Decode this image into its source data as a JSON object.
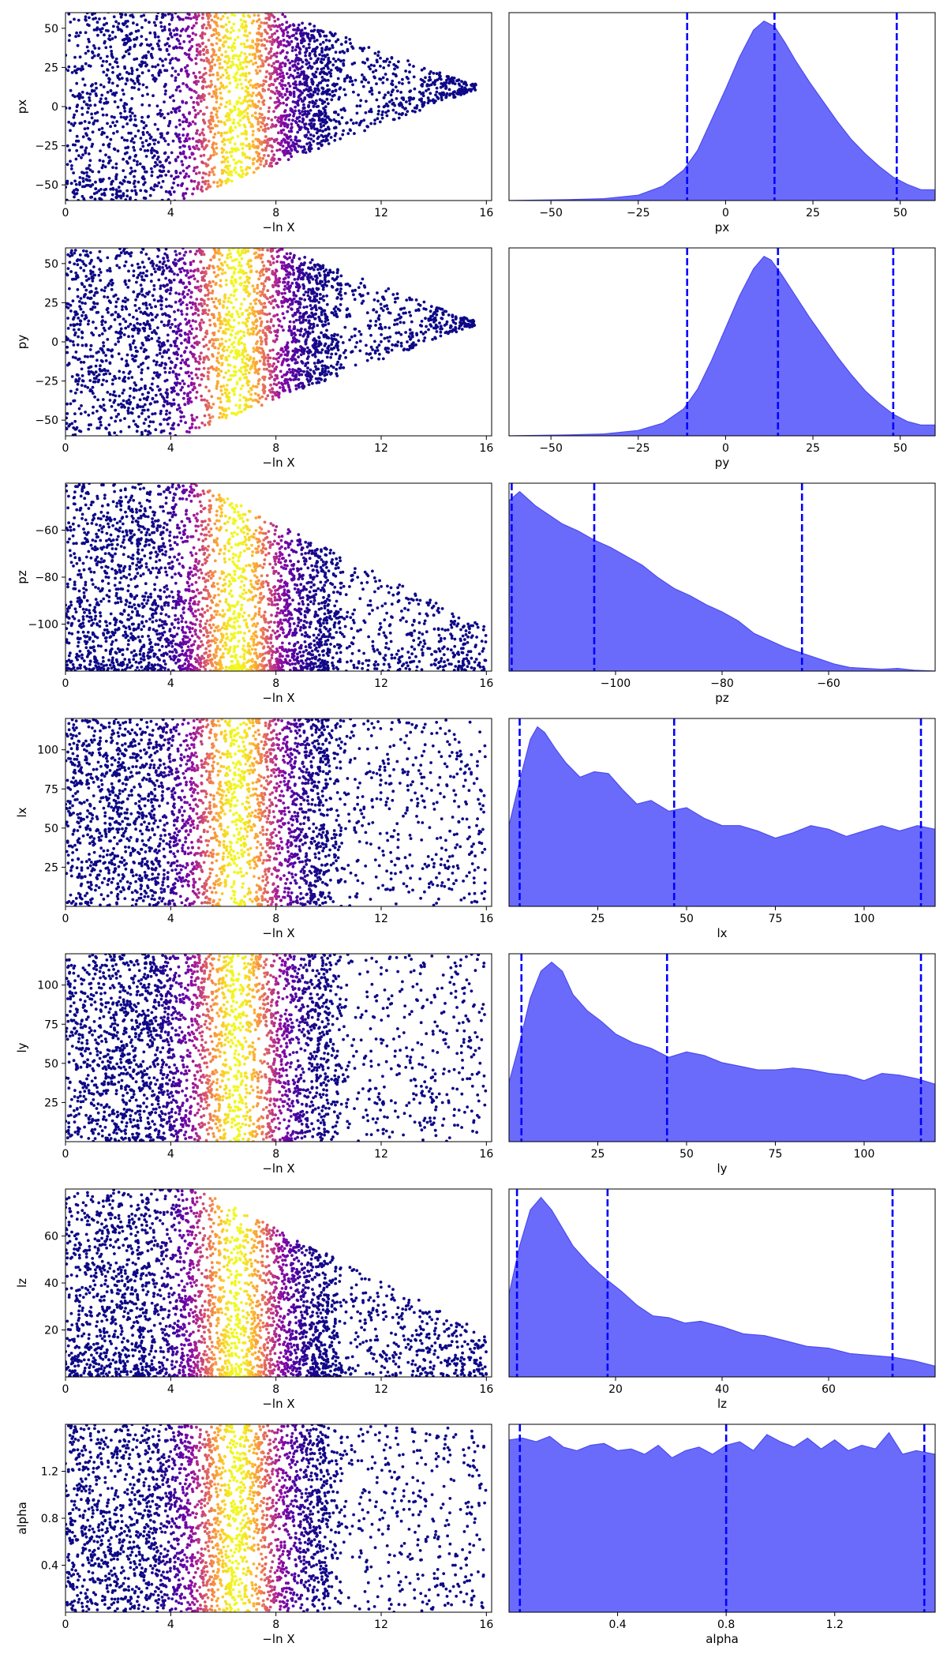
{
  "colors": {
    "kde_fill": "#6b6bfb",
    "kde_line": "#4b4bf0",
    "quantile_line": "#0000ff",
    "colormap": "plasma"
  },
  "chart_data": [
    {
      "type": "scatter",
      "param": "px",
      "xlabel": "−ln X",
      "ylabel": "px",
      "xlim": [
        0,
        16.2
      ],
      "ylim": [
        -60,
        60
      ],
      "xticks": [
        "0",
        "4",
        "8",
        "12",
        "16"
      ],
      "xtick_values": [
        0,
        4,
        8,
        12,
        16
      ],
      "yticks": [
        "−50",
        "−25",
        "0",
        "25",
        "50"
      ],
      "ytick_values": [
        -50,
        -25,
        0,
        25,
        50
      ],
      "color_peak_lnx": 6.5,
      "tail_lnx": 15.6,
      "envelope": "funnel",
      "center": 12
    },
    {
      "type": "area",
      "param": "px",
      "xlabel": "px",
      "xlim": [
        -62,
        60
      ],
      "xticks": [
        "−50",
        "−25",
        "0",
        "25",
        "50"
      ],
      "xtick_values": [
        -50,
        -25,
        0,
        25,
        50
      ],
      "quantiles": [
        -11,
        14,
        49
      ],
      "x": [
        -62,
        -45,
        -35,
        -25,
        -18,
        -12,
        -8,
        -4,
        0,
        4,
        8,
        11,
        14,
        17,
        20,
        24,
        28,
        32,
        36,
        40,
        44,
        48,
        52,
        56,
        60
      ],
      "density": [
        0.0,
        0.005,
        0.01,
        0.03,
        0.08,
        0.17,
        0.28,
        0.45,
        0.62,
        0.8,
        0.95,
        1.0,
        0.97,
        0.88,
        0.78,
        0.66,
        0.55,
        0.44,
        0.34,
        0.26,
        0.19,
        0.13,
        0.09,
        0.06,
        0.06
      ]
    },
    {
      "type": "scatter",
      "param": "py",
      "xlabel": "−ln X",
      "ylabel": "py",
      "xlim": [
        0,
        16.2
      ],
      "ylim": [
        -60,
        60
      ],
      "xticks": [
        "0",
        "4",
        "8",
        "12",
        "16"
      ],
      "xtick_values": [
        0,
        4,
        8,
        12,
        16
      ],
      "yticks": [
        "−50",
        "−25",
        "0",
        "25",
        "50"
      ],
      "ytick_values": [
        -50,
        -25,
        0,
        25,
        50
      ],
      "color_peak_lnx": 6.5,
      "tail_lnx": 15.6,
      "envelope": "funnel",
      "center": 12
    },
    {
      "type": "area",
      "param": "py",
      "xlabel": "py",
      "xlim": [
        -62,
        60
      ],
      "xticks": [
        "−50",
        "−25",
        "0",
        "25",
        "50"
      ],
      "xtick_values": [
        -50,
        -25,
        0,
        25,
        50
      ],
      "quantiles": [
        -11,
        15,
        48
      ],
      "x": [
        -62,
        -45,
        -35,
        -25,
        -18,
        -12,
        -8,
        -4,
        0,
        4,
        8,
        11,
        13,
        16,
        20,
        24,
        28,
        32,
        36,
        40,
        44,
        48,
        52,
        56,
        60
      ],
      "density": [
        0.0,
        0.005,
        0.01,
        0.03,
        0.07,
        0.15,
        0.26,
        0.42,
        0.6,
        0.78,
        0.93,
        1.0,
        0.98,
        0.9,
        0.78,
        0.66,
        0.55,
        0.44,
        0.34,
        0.25,
        0.18,
        0.12,
        0.08,
        0.06,
        0.06
      ]
    },
    {
      "type": "scatter",
      "param": "pz",
      "xlabel": "−ln X",
      "ylabel": "pz",
      "xlim": [
        0,
        16.2
      ],
      "ylim": [
        -120,
        -40
      ],
      "xticks": [
        "0",
        "4",
        "8",
        "12",
        "16"
      ],
      "xtick_values": [
        0,
        4,
        8,
        12,
        16
      ],
      "yticks": [
        "−100",
        "−80",
        "−60"
      ],
      "ytick_values": [
        -100,
        -80,
        -60
      ],
      "color_peak_lnx": 6.5,
      "tail_lnx": 16,
      "envelope": "low",
      "center": -100
    },
    {
      "type": "area",
      "param": "pz",
      "xlabel": "pz",
      "xlim": [
        -120,
        -40
      ],
      "xticks": [
        "−100",
        "−80",
        "−60"
      ],
      "xtick_values": [
        -100,
        -80,
        -60
      ],
      "quantiles": [
        -119.5,
        -104,
        -65
      ],
      "x": [
        -120,
        -118,
        -115,
        -112,
        -110,
        -107,
        -104,
        -101,
        -98,
        -95,
        -92,
        -89,
        -86,
        -83,
        -80,
        -77,
        -74,
        -71,
        -68,
        -65,
        -62,
        -59,
        -56,
        -53,
        -50,
        -47,
        -44,
        -40
      ],
      "density": [
        0.95,
        1.0,
        0.92,
        0.86,
        0.82,
        0.78,
        0.73,
        0.69,
        0.64,
        0.59,
        0.52,
        0.46,
        0.42,
        0.37,
        0.33,
        0.28,
        0.21,
        0.17,
        0.13,
        0.1,
        0.07,
        0.04,
        0.02,
        0.015,
        0.01,
        0.015,
        0.005,
        0.0
      ]
    },
    {
      "type": "scatter",
      "param": "lx",
      "xlabel": "−ln X",
      "ylabel": "lx",
      "xlim": [
        0,
        16.2
      ],
      "ylim": [
        0,
        120
      ],
      "xticks": [
        "0",
        "4",
        "8",
        "12",
        "16"
      ],
      "xtick_values": [
        0,
        4,
        8,
        12,
        16
      ],
      "yticks": [
        "25",
        "50",
        "75",
        "100"
      ],
      "ytick_values": [
        25,
        50,
        75,
        100
      ],
      "color_peak_lnx": 6.5,
      "tail_lnx": 16,
      "envelope": "uniform",
      "center": 60
    },
    {
      "type": "area",
      "param": "lx",
      "xlabel": "lx",
      "xlim": [
        0,
        120
      ],
      "xticks": [
        "25",
        "50",
        "75",
        "100"
      ],
      "xtick_values": [
        25,
        50,
        75,
        100
      ],
      "quantiles": [
        3,
        46.5,
        116
      ],
      "x": [
        0,
        3,
        6,
        8,
        10,
        13,
        16,
        20,
        24,
        28,
        32,
        36,
        40,
        45,
        50,
        55,
        60,
        65,
        70,
        75,
        80,
        85,
        90,
        95,
        100,
        105,
        110,
        115,
        120
      ],
      "density": [
        0.45,
        0.7,
        0.93,
        1.0,
        0.97,
        0.88,
        0.8,
        0.72,
        0.75,
        0.74,
        0.65,
        0.57,
        0.59,
        0.53,
        0.55,
        0.49,
        0.45,
        0.45,
        0.42,
        0.38,
        0.41,
        0.45,
        0.43,
        0.39,
        0.42,
        0.45,
        0.42,
        0.45,
        0.43
      ]
    },
    {
      "type": "scatter",
      "param": "ly",
      "xlabel": "−ln X",
      "ylabel": "ly",
      "xlim": [
        0,
        16.2
      ],
      "ylim": [
        0,
        120
      ],
      "xticks": [
        "0",
        "4",
        "8",
        "12",
        "16"
      ],
      "xtick_values": [
        0,
        4,
        8,
        12,
        16
      ],
      "yticks": [
        "25",
        "50",
        "75",
        "100"
      ],
      "ytick_values": [
        25,
        50,
        75,
        100
      ],
      "color_peak_lnx": 6.5,
      "tail_lnx": 16,
      "envelope": "uniform",
      "center": 60
    },
    {
      "type": "area",
      "param": "ly",
      "xlabel": "ly",
      "xlim": [
        0,
        120
      ],
      "xticks": [
        "25",
        "50",
        "75",
        "100"
      ],
      "xtick_values": [
        25,
        50,
        75,
        100
      ],
      "quantiles": [
        3.5,
        44.5,
        116
      ],
      "x": [
        0,
        3,
        6,
        9,
        12,
        15,
        18,
        22,
        26,
        30,
        35,
        40,
        45,
        50,
        55,
        60,
        65,
        70,
        75,
        80,
        85,
        90,
        95,
        100,
        105,
        110,
        115,
        120
      ],
      "density": [
        0.33,
        0.55,
        0.8,
        0.95,
        1.0,
        0.95,
        0.82,
        0.73,
        0.67,
        0.6,
        0.55,
        0.52,
        0.47,
        0.5,
        0.48,
        0.44,
        0.42,
        0.4,
        0.4,
        0.41,
        0.4,
        0.38,
        0.37,
        0.34,
        0.38,
        0.37,
        0.35,
        0.32
      ]
    },
    {
      "type": "scatter",
      "param": "lz",
      "xlabel": "−ln X",
      "ylabel": "lz",
      "xlim": [
        0,
        16.2
      ],
      "ylim": [
        0,
        80
      ],
      "xticks": [
        "0",
        "4",
        "8",
        "12",
        "16"
      ],
      "xtick_values": [
        0,
        4,
        8,
        12,
        16
      ],
      "yticks": [
        "20",
        "40",
        "60"
      ],
      "ytick_values": [
        20,
        40,
        60
      ],
      "color_peak_lnx": 6.5,
      "tail_lnx": 16,
      "envelope": "low",
      "center": 15
    },
    {
      "type": "area",
      "param": "lz",
      "xlabel": "lz",
      "xlim": [
        0,
        80
      ],
      "xticks": [
        "20",
        "40",
        "60"
      ],
      "xtick_values": [
        20,
        40,
        60
      ],
      "quantiles": [
        1.5,
        18.5,
        72
      ],
      "x": [
        0,
        2,
        4,
        6,
        8,
        10,
        12,
        15,
        18,
        21,
        24,
        27,
        30,
        33,
        36,
        40,
        44,
        48,
        52,
        56,
        60,
        64,
        68,
        72,
        76,
        80
      ],
      "density": [
        0.46,
        0.73,
        0.93,
        1.0,
        0.93,
        0.83,
        0.73,
        0.63,
        0.55,
        0.48,
        0.4,
        0.34,
        0.33,
        0.3,
        0.31,
        0.28,
        0.24,
        0.23,
        0.2,
        0.17,
        0.16,
        0.13,
        0.12,
        0.11,
        0.09,
        0.06
      ]
    },
    {
      "type": "scatter",
      "param": "alpha",
      "xlabel": "−ln X",
      "ylabel": "alpha",
      "xlim": [
        0,
        16.2
      ],
      "ylim": [
        0.0,
        1.6
      ],
      "xticks": [
        "0",
        "4",
        "8",
        "12",
        "16"
      ],
      "xtick_values": [
        0,
        4,
        8,
        12,
        16
      ],
      "yticks": [
        "0.4",
        "0.8",
        "1.2"
      ],
      "ytick_values": [
        0.4,
        0.8,
        1.2
      ],
      "color_peak_lnx": 6.5,
      "tail_lnx": 16,
      "envelope": "uniform",
      "center": 0.8
    },
    {
      "type": "area",
      "param": "alpha",
      "xlabel": "alpha",
      "xlim": [
        0.0,
        1.57
      ],
      "xticks": [
        "0.4",
        "0.8",
        "1.2"
      ],
      "xtick_values": [
        0.4,
        0.8,
        1.2
      ],
      "quantiles": [
        0.04,
        0.8,
        1.53
      ],
      "x": [
        0.0,
        0.05,
        0.1,
        0.15,
        0.2,
        0.25,
        0.3,
        0.35,
        0.4,
        0.45,
        0.5,
        0.55,
        0.6,
        0.65,
        0.7,
        0.75,
        0.8,
        0.85,
        0.9,
        0.95,
        1.0,
        1.05,
        1.1,
        1.15,
        1.2,
        1.25,
        1.3,
        1.35,
        1.4,
        1.45,
        1.5,
        1.57
      ],
      "density": [
        0.96,
        0.97,
        0.95,
        0.98,
        0.92,
        0.9,
        0.93,
        0.94,
        0.9,
        0.91,
        0.88,
        0.93,
        0.86,
        0.9,
        0.92,
        0.88,
        0.93,
        0.95,
        0.9,
        0.99,
        0.95,
        0.92,
        0.97,
        0.91,
        0.96,
        0.9,
        0.93,
        0.91,
        1.0,
        0.88,
        0.9,
        0.88
      ]
    }
  ]
}
